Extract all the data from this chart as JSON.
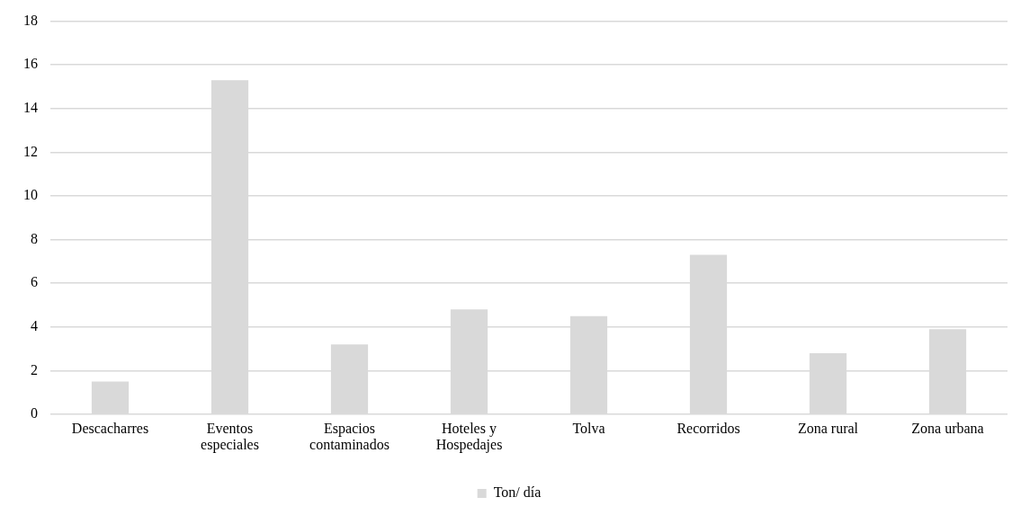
{
  "chart_data": {
    "type": "bar",
    "categories": [
      "Descacharres",
      "Eventos especiales",
      "Espacios contaminados",
      "Hoteles y Hospedajes",
      "Tolva",
      "Recorridos",
      "Zona rural",
      "Zona urbana"
    ],
    "series": [
      {
        "name": "Ton/ día",
        "color": "#d9d9d9",
        "values": [
          1.5,
          15.3,
          3.2,
          4.8,
          4.5,
          7.3,
          2.8,
          3.9
        ]
      }
    ],
    "ylim": [
      0,
      18
    ],
    "yticks": [
      0,
      2,
      4,
      6,
      8,
      10,
      12,
      14,
      16,
      18
    ],
    "grid": "y",
    "legend": "bottom"
  }
}
